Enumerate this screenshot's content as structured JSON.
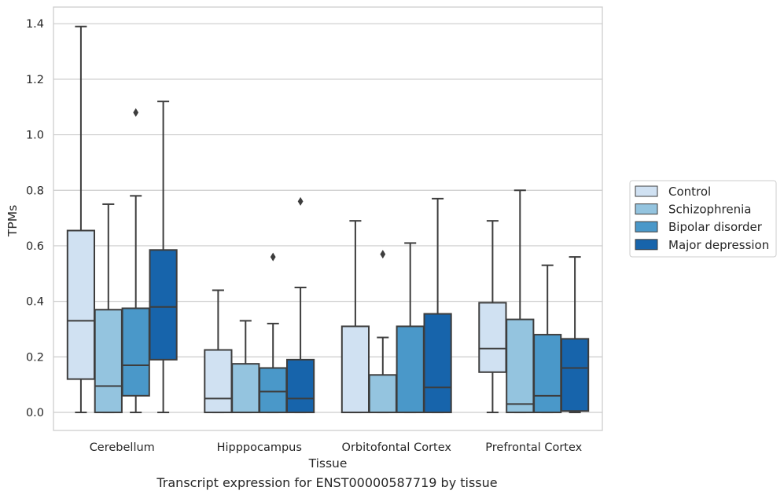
{
  "chart_data": {
    "type": "box",
    "xlabel": "Tissue",
    "ylabel": "TPMs",
    "caption": "Transcript expression for ENST00000587719 by tissue",
    "ylim": [
      -0.065,
      1.46
    ],
    "yticks": [
      0.0,
      0.2,
      0.4,
      0.6,
      0.8,
      1.0,
      1.2,
      1.4
    ],
    "ytick_labels": [
      "0.0",
      "0.2",
      "0.4",
      "0.6",
      "0.8",
      "1.0",
      "1.2",
      "1.4"
    ],
    "grid": true,
    "legend_position": "right",
    "categories": [
      "Cerebellum",
      "Hipppocampus",
      "Orbitofontal Cortex",
      "Prefrontal Cortex"
    ],
    "series": [
      {
        "name": "Control",
        "color": "#d0e1f2",
        "boxes": [
          {
            "q1": 0.12,
            "median": 0.33,
            "q3": 0.655,
            "whislo": 0.0,
            "whishi": 1.39,
            "fliers": []
          },
          {
            "q1": 0.0,
            "median": 0.05,
            "q3": 0.225,
            "whislo": 0.0,
            "whishi": 0.44,
            "fliers": []
          },
          {
            "q1": 0.0,
            "median": 0.0,
            "q3": 0.31,
            "whislo": 0.0,
            "whishi": 0.69,
            "fliers": []
          },
          {
            "q1": 0.145,
            "median": 0.23,
            "q3": 0.395,
            "whislo": 0.0,
            "whishi": 0.69,
            "fliers": []
          }
        ]
      },
      {
        "name": "Schizophrenia",
        "color": "#94c4df",
        "boxes": [
          {
            "q1": 0.0,
            "median": 0.095,
            "q3": 0.37,
            "whislo": 0.0,
            "whishi": 0.75,
            "fliers": []
          },
          {
            "q1": 0.0,
            "median": 0.0,
            "q3": 0.175,
            "whislo": 0.0,
            "whishi": 0.33,
            "fliers": []
          },
          {
            "q1": 0.0,
            "median": 0.0,
            "q3": 0.135,
            "whislo": 0.0,
            "whishi": 0.27,
            "fliers": [
              0.57
            ]
          },
          {
            "q1": 0.0,
            "median": 0.03,
            "q3": 0.335,
            "whislo": 0.0,
            "whishi": 0.8,
            "fliers": []
          }
        ]
      },
      {
        "name": "Bipolar disorder",
        "color": "#4a98c9",
        "boxes": [
          {
            "q1": 0.06,
            "median": 0.17,
            "q3": 0.375,
            "whislo": 0.0,
            "whishi": 0.78,
            "fliers": [
              1.08
            ]
          },
          {
            "q1": 0.0,
            "median": 0.075,
            "q3": 0.16,
            "whislo": 0.0,
            "whishi": 0.32,
            "fliers": [
              0.56
            ]
          },
          {
            "q1": 0.0,
            "median": 0.0,
            "q3": 0.31,
            "whislo": 0.0,
            "whishi": 0.61,
            "fliers": []
          },
          {
            "q1": 0.0,
            "median": 0.06,
            "q3": 0.28,
            "whislo": 0.0,
            "whishi": 0.53,
            "fliers": []
          }
        ]
      },
      {
        "name": "Major depression",
        "color": "#1764ab",
        "boxes": [
          {
            "q1": 0.19,
            "median": 0.38,
            "q3": 0.585,
            "whislo": 0.0,
            "whishi": 1.12,
            "fliers": []
          },
          {
            "q1": 0.0,
            "median": 0.05,
            "q3": 0.19,
            "whislo": 0.0,
            "whishi": 0.45,
            "fliers": [
              0.76
            ]
          },
          {
            "q1": 0.0,
            "median": 0.09,
            "q3": 0.355,
            "whislo": 0.0,
            "whishi": 0.77,
            "fliers": []
          },
          {
            "q1": 0.005,
            "median": 0.16,
            "q3": 0.265,
            "whislo": 0.0,
            "whishi": 0.56,
            "fliers": []
          }
        ]
      }
    ]
  }
}
